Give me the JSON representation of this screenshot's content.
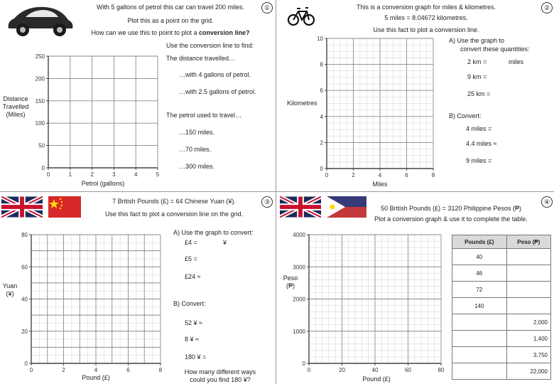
{
  "q1": {
    "number": "①",
    "intro": [
      "With 5 gallons of petrol this car can travel 200 miles.",
      "Plot this as a point on the grid."
    ],
    "question_prefix": "How can we use this to point to plot a ",
    "question_bold": "conversion line?",
    "task_heading": "Use the conversion line to find:",
    "group1_heading": "The distance travelled…",
    "group1_items": [
      "…with 4 gallons of petrol.",
      "…with 2.5 gallons of petrol."
    ],
    "group2_heading": "The petrol used to travel…",
    "group2_items": [
      "…150 miles.",
      "…70 miles.",
      "…300 miles."
    ],
    "ylabel": [
      "Distance",
      "Travelled",
      "(Miles)"
    ],
    "xlabel": "Petrol (gallons)",
    "xticks": [
      "0",
      "1",
      "2",
      "3",
      "4",
      "5"
    ],
    "yticks": [
      "0",
      "50",
      "100",
      "150",
      "200",
      "250"
    ]
  },
  "q2": {
    "number": "②",
    "intro": [
      "This is a conversion graph for miles & kilometres.",
      "5 miles = 8.04672 kilometres.",
      "Use this fact to plot a conversion line."
    ],
    "partA_title": [
      "A) Use the graph to",
      "convert these quantities:"
    ],
    "partA_items": [
      [
        "2 km  =",
        "miles"
      ],
      [
        "9 km  =",
        ""
      ],
      [
        "25 km  =",
        ""
      ]
    ],
    "partB_title": "B) Convert:",
    "partB_items": [
      "4 miles  =",
      "4.4 miles ≈",
      "9 miles  ="
    ],
    "ylabel": "Kilometres",
    "xlabel": "Miles",
    "xticks": [
      "0",
      "2",
      "4",
      "6",
      "8"
    ],
    "yticks": [
      "0",
      "2",
      "4",
      "6",
      "8",
      "10"
    ]
  },
  "q3": {
    "number": "③",
    "intro_prefix": "7 British Pounds (£)  =  64 Chinese Yuan (¥).",
    "intro2": "Use this fact to plot a conversion line on the grid.",
    "partA_title": "A) Use the graph to convert:",
    "partA_items": [
      [
        "£4  =",
        "¥"
      ],
      [
        "£5  =",
        ""
      ],
      [
        "£24  ≈",
        ""
      ]
    ],
    "partB_title": "B) Convert:",
    "partB_items": [
      "52 ¥  ≈",
      "8 ¥  ≈",
      "180 ¥  ="
    ],
    "closing": [
      "How many different ways",
      "could you find 180 ¥?"
    ],
    "ylabel": [
      "Yuan",
      "(¥)"
    ],
    "xlabel": "Pound (£)",
    "xticks": [
      "0",
      "2",
      "4",
      "6",
      "8"
    ],
    "yticks": [
      "0",
      "20",
      "40",
      "60",
      "80"
    ]
  },
  "q4": {
    "number": "④",
    "intro": [
      "50 British Pounds (£)  =  3120 Philippine Pesos (₱)",
      "Plot a conversion graph & use it to complete the table."
    ],
    "ylabel": [
      "Peso",
      "(₱)"
    ],
    "xlabel": "Pound (£)",
    "xticks": [
      "0",
      "20",
      "40",
      "60",
      "80"
    ],
    "yticks": [
      "0",
      "1000",
      "2000",
      "3000",
      "4000"
    ],
    "table_headers": [
      "Pounds (£)",
      "Peso (₱)"
    ],
    "table_rows": [
      [
        "40",
        ""
      ],
      [
        "46",
        ""
      ],
      [
        "72",
        ""
      ],
      [
        "140",
        ""
      ],
      [
        "",
        "2,000"
      ],
      [
        "",
        "1,400"
      ],
      [
        "",
        "3,750"
      ],
      [
        "",
        "22,000"
      ]
    ]
  },
  "colors": {
    "grid_minor": "#cfcfcf",
    "grid_major": "#8a8a8a",
    "union_blue": "#1c2a5c",
    "union_red": "#c8102e",
    "china_red": "#d62828",
    "china_yellow": "#ffde00",
    "ph_blue": "#353a78",
    "ph_red": "#c43a3a"
  },
  "icons": [
    "car-icon",
    "bicycle-icon",
    "uk-flag-icon",
    "china-flag-icon",
    "uk-flag-icon",
    "philippines-flag-icon"
  ]
}
